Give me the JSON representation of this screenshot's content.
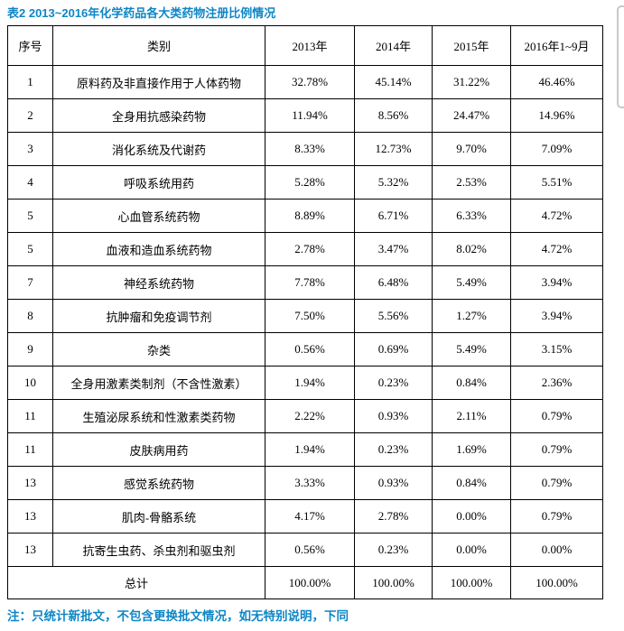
{
  "title": "表2 2013~2016年化学药品各大类药物注册比例情况",
  "footnote": "注：只统计新批文，不包含更换批文情况，如无特别说明，下同",
  "colors": {
    "accent_blue": "#0e86c5",
    "table_border": "#000000",
    "fragment_border": "#c9c9c9"
  },
  "chart_data": {
    "type": "table",
    "title": "表2 2013~2016年化学药品各大类药物注册比例情况",
    "categories": [
      "2013年",
      "2014年",
      "2015年",
      "2016年1~9月"
    ],
    "series": [
      {
        "name": "原料药及非直接作用于人体药物",
        "values": [
          32.78,
          45.14,
          31.22,
          46.46
        ]
      },
      {
        "name": "全身用抗感染药物",
        "values": [
          11.94,
          8.56,
          24.47,
          14.96
        ]
      },
      {
        "name": "消化系统及代谢药",
        "values": [
          8.33,
          12.73,
          9.7,
          7.09
        ]
      },
      {
        "name": "呼吸系统用药",
        "values": [
          5.28,
          5.32,
          2.53,
          5.51
        ]
      },
      {
        "name": "心血管系统药物",
        "values": [
          8.89,
          6.71,
          6.33,
          4.72
        ]
      },
      {
        "name": "血液和造血系统药物",
        "values": [
          2.78,
          3.47,
          8.02,
          4.72
        ]
      },
      {
        "name": "神经系统药物",
        "values": [
          7.78,
          6.48,
          5.49,
          3.94
        ]
      },
      {
        "name": "抗肿瘤和免疫调节剂",
        "values": [
          7.5,
          5.56,
          1.27,
          3.94
        ]
      },
      {
        "name": "杂类",
        "values": [
          0.56,
          0.69,
          5.49,
          3.15
        ]
      },
      {
        "name": "全身用激素类制剂（不含性激素）",
        "values": [
          1.94,
          0.23,
          0.84,
          2.36
        ]
      },
      {
        "name": "生殖泌尿系统和性激素类药物",
        "values": [
          2.22,
          0.93,
          2.11,
          0.79
        ]
      },
      {
        "name": "皮肤病用药",
        "values": [
          1.94,
          0.23,
          1.69,
          0.79
        ]
      },
      {
        "name": "感觉系统药物",
        "values": [
          3.33,
          0.93,
          0.84,
          0.79
        ]
      },
      {
        "name": "肌肉-骨骼系统",
        "values": [
          4.17,
          2.78,
          0.0,
          0.79
        ]
      },
      {
        "name": "抗寄生虫药、杀虫剂和驱虫剂",
        "values": [
          0.56,
          0.23,
          0.0,
          0.0
        ]
      }
    ]
  },
  "table": {
    "headers": [
      "序号",
      "类别",
      "2013年",
      "2014年",
      "2015年",
      "2016年1~9月"
    ],
    "rows": [
      {
        "no": "1",
        "category": "原料药及非直接作用于人体药物",
        "values": [
          "32.78%",
          "45.14%",
          "31.22%",
          "46.46%"
        ]
      },
      {
        "no": "2",
        "category": "全身用抗感染药物",
        "values": [
          "11.94%",
          "8.56%",
          "24.47%",
          "14.96%"
        ]
      },
      {
        "no": "3",
        "category": "消化系统及代谢药",
        "values": [
          "8.33%",
          "12.73%",
          "9.70%",
          "7.09%"
        ]
      },
      {
        "no": "4",
        "category": "呼吸系统用药",
        "values": [
          "5.28%",
          "5.32%",
          "2.53%",
          "5.51%"
        ]
      },
      {
        "no": "5",
        "category": "心血管系统药物",
        "values": [
          "8.89%",
          "6.71%",
          "6.33%",
          "4.72%"
        ]
      },
      {
        "no": "5",
        "category": "血液和造血系统药物",
        "values": [
          "2.78%",
          "3.47%",
          "8.02%",
          "4.72%"
        ]
      },
      {
        "no": "7",
        "category": "神经系统药物",
        "values": [
          "7.78%",
          "6.48%",
          "5.49%",
          "3.94%"
        ]
      },
      {
        "no": "8",
        "category": "抗肿瘤和免疫调节剂",
        "values": [
          "7.50%",
          "5.56%",
          "1.27%",
          "3.94%"
        ]
      },
      {
        "no": "9",
        "category": "杂类",
        "values": [
          "0.56%",
          "0.69%",
          "5.49%",
          "3.15%"
        ]
      },
      {
        "no": "10",
        "category": "全身用激素类制剂（不含性激素）",
        "values": [
          "1.94%",
          "0.23%",
          "0.84%",
          "2.36%"
        ]
      },
      {
        "no": "11",
        "category": "生殖泌尿系统和性激素类药物",
        "values": [
          "2.22%",
          "0.93%",
          "2.11%",
          "0.79%"
        ]
      },
      {
        "no": "11",
        "category": "皮肤病用药",
        "values": [
          "1.94%",
          "0.23%",
          "1.69%",
          "0.79%"
        ]
      },
      {
        "no": "13",
        "category": "感觉系统药物",
        "values": [
          "3.33%",
          "0.93%",
          "0.84%",
          "0.79%"
        ]
      },
      {
        "no": "13",
        "category": "肌肉-骨骼系统",
        "values": [
          "4.17%",
          "2.78%",
          "0.00%",
          "0.79%"
        ]
      },
      {
        "no": "13",
        "category": "抗寄生虫药、杀虫剂和驱虫剂",
        "values": [
          "0.56%",
          "0.23%",
          "0.00%",
          "0.00%"
        ]
      }
    ],
    "total": {
      "label": "总计",
      "values": [
        "100.00%",
        "100.00%",
        "100.00%",
        "100.00%"
      ]
    }
  }
}
